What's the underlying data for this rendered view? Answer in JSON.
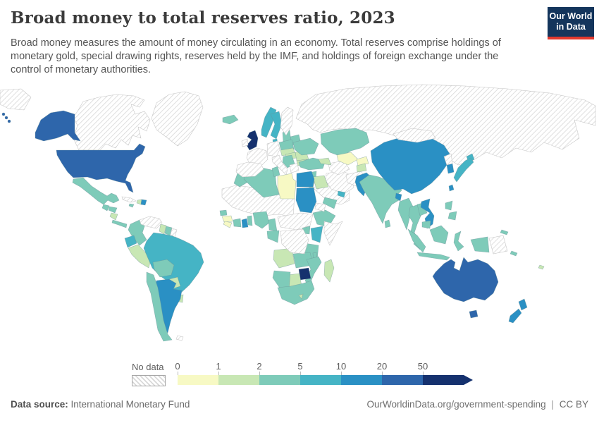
{
  "header": {
    "title": "Broad money to total reserves ratio, 2023",
    "subtitle": "Broad money measures the amount of money circulating in an economy. Total reserves comprise holdings of monetary gold, special drawing rights, reserves held by the IMF, and holdings of foreign exchange under the control of monetary authorities.",
    "logo_line1": "Our World",
    "logo_line2": "in Data"
  },
  "colors": {
    "logo_bg": "#14355C",
    "logo_accent": "#E0392E",
    "ocean": "#ffffff",
    "no_data_hatch_line": "#d9d9d9",
    "no_data_stroke": "#c4c4c4",
    "country_stroke": "#6b8f96"
  },
  "legend": {
    "no_data_label": "No data",
    "ticks": [
      "0",
      "1",
      "2",
      "5",
      "10",
      "20",
      "50"
    ],
    "bins": [
      {
        "label": "0-1",
        "color": "#f7f9c4"
      },
      {
        "label": "1-2",
        "color": "#c8e7b4"
      },
      {
        "label": "2-5",
        "color": "#7ecbb9"
      },
      {
        "label": "5-10",
        "color": "#45b4c5"
      },
      {
        "label": "10-20",
        "color": "#2a90c4"
      },
      {
        "label": "20-50",
        "color": "#2e66ab"
      },
      {
        "label": "50+",
        "color": "#15316e"
      }
    ]
  },
  "chart_data": {
    "type": "heatmap",
    "title": "Broad money to total reserves ratio, 2023",
    "legend_position": "bottom",
    "value_bins": [
      0,
      1,
      2,
      5,
      10,
      20,
      50
    ],
    "note": "choropleth world map; values are ratio bins per country"
  },
  "map": {
    "regions": [
      {
        "id": "russia",
        "name": "Russia",
        "bin": "no-data"
      },
      {
        "id": "canada",
        "name": "Canada",
        "bin": "no-data"
      },
      {
        "id": "greenland",
        "name": "Greenland",
        "bin": "no-data"
      },
      {
        "id": "usa",
        "name": "United States",
        "bin": "20-50"
      },
      {
        "id": "mexico",
        "name": "Mexico",
        "bin": "2-5"
      },
      {
        "id": "guatemala",
        "name": "Guatemala",
        "bin": "2-5"
      },
      {
        "id": "honduras",
        "name": "Honduras",
        "bin": "2-5"
      },
      {
        "id": "nicaragua",
        "name": "Nicaragua",
        "bin": "1-2"
      },
      {
        "id": "costa-rica-panama",
        "name": "Costa Rica & Panama",
        "bin": "2-5"
      },
      {
        "id": "cuba",
        "name": "Cuba",
        "bin": "no-data"
      },
      {
        "id": "haiti",
        "name": "Haiti",
        "bin": "1-2"
      },
      {
        "id": "dominican-republic",
        "name": "Dominican Republic",
        "bin": "10-20"
      },
      {
        "id": "jamaica",
        "name": "Jamaica",
        "bin": "2-5"
      },
      {
        "id": "venezuela",
        "name": "Venezuela",
        "bin": "no-data"
      },
      {
        "id": "colombia",
        "name": "Colombia",
        "bin": "2-5"
      },
      {
        "id": "guyana",
        "name": "Guyana",
        "bin": "1-2"
      },
      {
        "id": "suriname",
        "name": "Suriname",
        "bin": "2-5"
      },
      {
        "id": "french-guiana",
        "name": "French Guiana",
        "bin": "no-data"
      },
      {
        "id": "ecuador",
        "name": "Ecuador",
        "bin": "5-10"
      },
      {
        "id": "peru",
        "name": "Peru",
        "bin": "1-2"
      },
      {
        "id": "brazil",
        "name": "Brazil",
        "bin": "5-10"
      },
      {
        "id": "bolivia",
        "name": "Bolivia",
        "bin": "2-5"
      },
      {
        "id": "paraguay",
        "name": "Paraguay",
        "bin": "1-2"
      },
      {
        "id": "uruguay",
        "name": "Uruguay",
        "bin": "1-2"
      },
      {
        "id": "chile",
        "name": "Chile",
        "bin": "2-5"
      },
      {
        "id": "argentina",
        "name": "Argentina",
        "bin": "10-20"
      },
      {
        "id": "falkland-islands",
        "name": "Falkland Islands",
        "bin": "no-data"
      },
      {
        "id": "iceland",
        "name": "Iceland",
        "bin": "2-5"
      },
      {
        "id": "united-kingdom",
        "name": "United Kingdom",
        "bin": "50+"
      },
      {
        "id": "ireland",
        "name": "Ireland",
        "bin": "no-data"
      },
      {
        "id": "norway",
        "name": "Norway",
        "bin": "5-10"
      },
      {
        "id": "sweden",
        "name": "Sweden",
        "bin": "5-10"
      },
      {
        "id": "finland",
        "name": "Finland",
        "bin": "no-data"
      },
      {
        "id": "denmark",
        "name": "Denmark",
        "bin": "5-10"
      },
      {
        "id": "baltics",
        "name": "Baltic states",
        "bin": "2-5"
      },
      {
        "id": "belarus",
        "name": "Belarus",
        "bin": "2-5"
      },
      {
        "id": "poland",
        "name": "Poland",
        "bin": "2-5"
      },
      {
        "id": "germany-central-europe",
        "name": "Germany & Central Europe",
        "bin": "no-data"
      },
      {
        "id": "france",
        "name": "France",
        "bin": "no-data"
      },
      {
        "id": "iberia",
        "name": "Spain & Portugal",
        "bin": "no-data"
      },
      {
        "id": "italy",
        "name": "Italy",
        "bin": "no-data"
      },
      {
        "id": "greece",
        "name": "Greece",
        "bin": "no-data"
      },
      {
        "id": "czech-slovakia",
        "name": "Czechia & Slovakia",
        "bin": "1-2"
      },
      {
        "id": "hungary",
        "name": "Hungary",
        "bin": "1-2"
      },
      {
        "id": "romania",
        "name": "Romania",
        "bin": "1-2"
      },
      {
        "id": "bulgaria",
        "name": "Bulgaria",
        "bin": "1-2"
      },
      {
        "id": "balkans",
        "name": "Western Balkans",
        "bin": "2-5"
      },
      {
        "id": "ukraine",
        "name": "Ukraine",
        "bin": "2-5"
      },
      {
        "id": "turkey",
        "name": "Turkey",
        "bin": "2-5"
      },
      {
        "id": "caucasus",
        "name": "Caucasus",
        "bin": "1-2"
      },
      {
        "id": "syria",
        "name": "Syria",
        "bin": "2-5"
      },
      {
        "id": "iraq",
        "name": "Iraq",
        "bin": "1-2"
      },
      {
        "id": "israel",
        "name": "Israel",
        "bin": "10-20"
      },
      {
        "id": "jordan",
        "name": "Jordan",
        "bin": "1-2"
      },
      {
        "id": "saudi-arabia",
        "name": "Saudi Arabia & Oman",
        "bin": "no-data"
      },
      {
        "id": "yemen",
        "name": "Yemen",
        "bin": "2-5"
      },
      {
        "id": "uae",
        "name": "United Arab Emirates",
        "bin": "5-10"
      },
      {
        "id": "iran",
        "name": "Iran",
        "bin": "no-data"
      },
      {
        "id": "afghanistan",
        "name": "Afghanistan",
        "bin": "no-data"
      },
      {
        "id": "turkmenistan",
        "name": "Turkmenistan",
        "bin": "no-data"
      },
      {
        "id": "kazakhstan",
        "name": "Kazakhstan",
        "bin": "2-5"
      },
      {
        "id": "uzbekistan",
        "name": "Uzbekistan",
        "bin": "0-1"
      },
      {
        "id": "kyrgyzstan",
        "name": "Kyrgyzstan",
        "bin": "0-1"
      },
      {
        "id": "tajikistan",
        "name": "Tajikistan",
        "bin": "1-2"
      },
      {
        "id": "pakistan",
        "name": "Pakistan",
        "bin": "10-20"
      },
      {
        "id": "india",
        "name": "India",
        "bin": "2-5"
      },
      {
        "id": "bangladesh",
        "name": "Bangladesh",
        "bin": "10-20"
      },
      {
        "id": "sri-lanka",
        "name": "Sri Lanka",
        "bin": "2-5"
      },
      {
        "id": "china",
        "name": "China",
        "bin": "10-20"
      },
      {
        "id": "mongolia",
        "name": "Mongolia",
        "bin": "no-data"
      },
      {
        "id": "north-korea",
        "name": "North Korea",
        "bin": "no-data"
      },
      {
        "id": "south-korea",
        "name": "South Korea",
        "bin": "10-20"
      },
      {
        "id": "japan",
        "name": "Japan",
        "bin": "5-10"
      },
      {
        "id": "taiwan",
        "name": "Taiwan",
        "bin": "10-20"
      },
      {
        "id": "myanmar",
        "name": "Myanmar",
        "bin": "2-5"
      },
      {
        "id": "thailand",
        "name": "Thailand",
        "bin": "2-5"
      },
      {
        "id": "laos",
        "name": "Laos",
        "bin": "2-5"
      },
      {
        "id": "vietnam",
        "name": "Vietnam",
        "bin": "10-20"
      },
      {
        "id": "cambodia",
        "name": "Cambodia",
        "bin": "2-5"
      },
      {
        "id": "malaysia",
        "name": "Malaysia",
        "bin": "2-5"
      },
      {
        "id": "indonesia",
        "name": "Indonesia",
        "bin": "2-5"
      },
      {
        "id": "philippines",
        "name": "Philippines",
        "bin": "2-5"
      },
      {
        "id": "papua-new-guinea",
        "name": "Papua New Guinea",
        "bin": "no-data"
      },
      {
        "id": "morocco",
        "name": "Morocco",
        "bin": "2-5"
      },
      {
        "id": "algeria",
        "name": "Algeria",
        "bin": "2-5"
      },
      {
        "id": "tunisia",
        "name": "Tunisia",
        "bin": "2-5"
      },
      {
        "id": "libya",
        "name": "Libya",
        "bin": "0-1"
      },
      {
        "id": "egypt",
        "name": "Egypt",
        "bin": "10-20"
      },
      {
        "id": "sudan",
        "name": "Sudan",
        "bin": "10-20"
      },
      {
        "id": "sahara-sahel",
        "name": "Mauritania, Mali, Niger & Chad",
        "bin": "no-data"
      },
      {
        "id": "senegal",
        "name": "Senegal",
        "bin": "2-5"
      },
      {
        "id": "guinea",
        "name": "Guinea",
        "bin": "0-1"
      },
      {
        "id": "sierra-leone-liberia",
        "name": "Sierra Leone & Liberia",
        "bin": "0-1"
      },
      {
        "id": "ivory-coast",
        "name": "Cote d'Ivoire",
        "bin": "2-5"
      },
      {
        "id": "ghana",
        "name": "Ghana",
        "bin": "10-20"
      },
      {
        "id": "togo-benin",
        "name": "Togo & Benin",
        "bin": "2-5"
      },
      {
        "id": "nigeria",
        "name": "Nigeria",
        "bin": "2-5"
      },
      {
        "id": "cameroon",
        "name": "Cameroon",
        "bin": "2-5"
      },
      {
        "id": "central-africa",
        "name": "CAR & South Sudan",
        "bin": "no-data"
      },
      {
        "id": "gabon-congo",
        "name": "Gabon & Congo",
        "bin": "2-5"
      },
      {
        "id": "drc",
        "name": "Democratic Republic of Congo",
        "bin": "no-data"
      },
      {
        "id": "eritrea",
        "name": "Eritrea",
        "bin": "no-data"
      },
      {
        "id": "ethiopia",
        "name": "Ethiopia",
        "bin": "2-5"
      },
      {
        "id": "somalia",
        "name": "Somalia",
        "bin": "no-data"
      },
      {
        "id": "uganda",
        "name": "Uganda",
        "bin": "2-5"
      },
      {
        "id": "kenya",
        "name": "Kenya",
        "bin": "5-10"
      },
      {
        "id": "rwanda-burundi",
        "name": "Rwanda & Burundi",
        "bin": "20-50"
      },
      {
        "id": "tanzania",
        "name": "Tanzania",
        "bin": "2-5"
      },
      {
        "id": "angola",
        "name": "Angola",
        "bin": "1-2"
      },
      {
        "id": "zambia",
        "name": "Zambia",
        "bin": "2-5"
      },
      {
        "id": "malawi",
        "name": "Malawi",
        "bin": "2-5"
      },
      {
        "id": "mozambique",
        "name": "Mozambique",
        "bin": "2-5"
      },
      {
        "id": "zimbabwe",
        "name": "Zimbabwe",
        "bin": "50+"
      },
      {
        "id": "botswana",
        "name": "Botswana",
        "bin": "1-2"
      },
      {
        "id": "namibia",
        "name": "Namibia",
        "bin": "2-5"
      },
      {
        "id": "south-africa",
        "name": "South Africa",
        "bin": "2-5"
      },
      {
        "id": "lesotho",
        "name": "Lesotho",
        "bin": "1-2"
      },
      {
        "id": "madagascar",
        "name": "Madagascar",
        "bin": "1-2"
      },
      {
        "id": "australia",
        "name": "Australia",
        "bin": "20-50"
      },
      {
        "id": "new-zealand",
        "name": "New Zealand",
        "bin": "10-20"
      },
      {
        "id": "solomon-islands",
        "name": "Solomon Islands",
        "bin": "2-5"
      },
      {
        "id": "new-caledonia",
        "name": "New Caledonia",
        "bin": "2-5"
      },
      {
        "id": "fiji",
        "name": "Fiji",
        "bin": "1-2"
      }
    ]
  },
  "footer": {
    "source_label": "Data source:",
    "source_value": "International Monetary Fund",
    "url": "OurWorldinData.org/government-spending",
    "separator": "|",
    "license": "CC BY"
  }
}
